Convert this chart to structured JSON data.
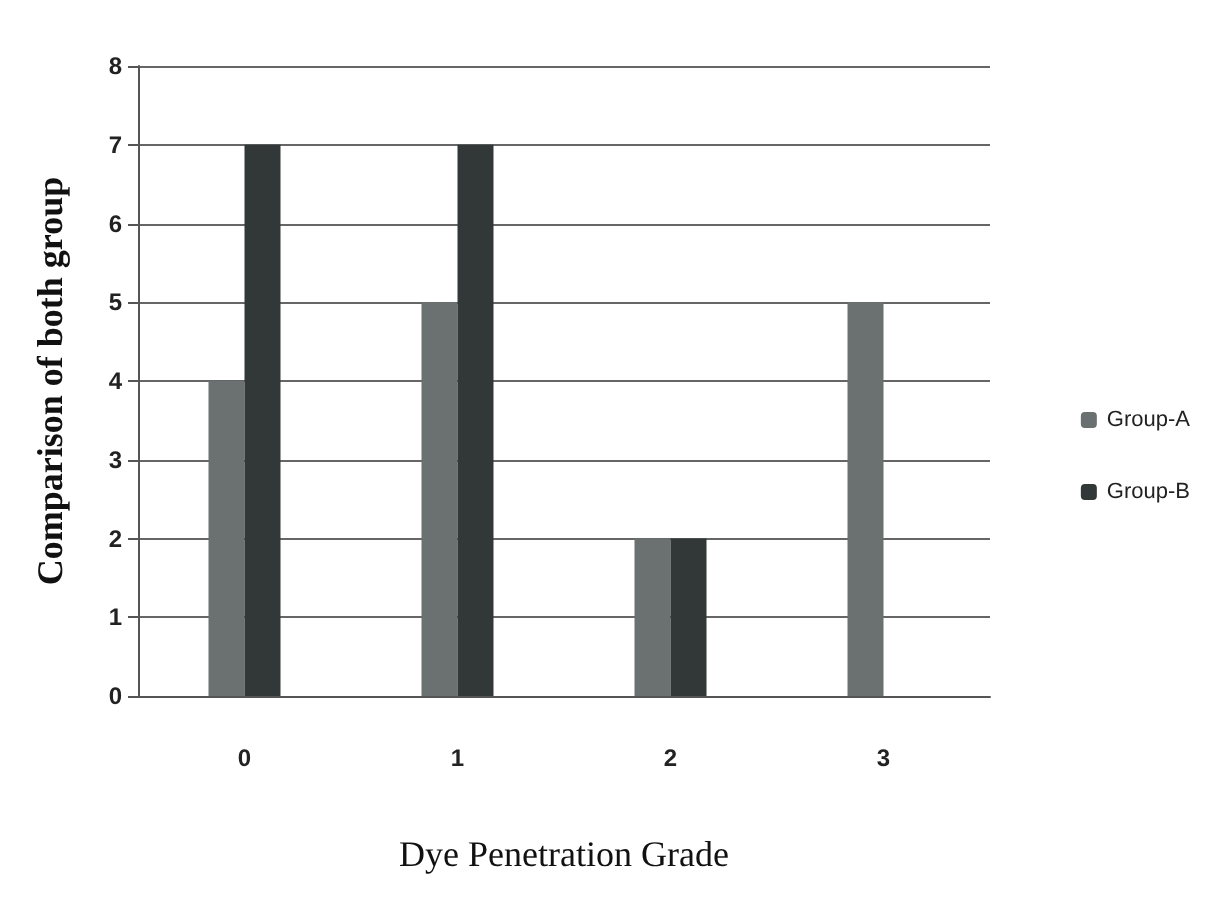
{
  "chart_data": {
    "type": "bar",
    "xlabel": "Dye Penetration Grade",
    "ylabel": "Comparison of both group",
    "categories": [
      "0",
      "1",
      "2",
      "3"
    ],
    "series": [
      {
        "name": "Group-A",
        "color": "#6b7070",
        "values": [
          4,
          5,
          2,
          5
        ]
      },
      {
        "name": "Group-B",
        "color": "#323838",
        "values": [
          7,
          7,
          2,
          0
        ]
      }
    ],
    "ylim": [
      0,
      8
    ],
    "yticks": [
      0,
      1,
      2,
      3,
      4,
      5,
      6,
      7,
      8
    ],
    "grid": "y",
    "legend": "right"
  }
}
